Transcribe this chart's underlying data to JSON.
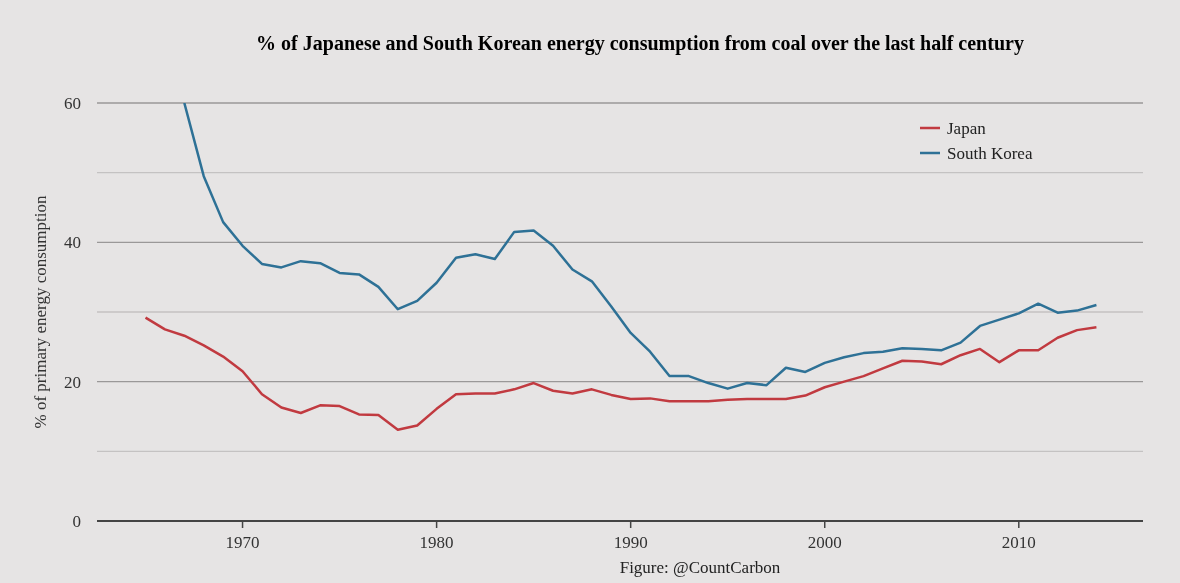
{
  "chart_data": {
    "type": "line",
    "title": "% of Japanese and South Korean energy consumption from coal over the last half century",
    "ylabel": "% of primary energy consumption",
    "annotations": [
      "Figure: @CountCarbon"
    ],
    "x": [
      1965,
      1966,
      1967,
      1968,
      1969,
      1970,
      1971,
      1972,
      1973,
      1974,
      1975,
      1976,
      1977,
      1978,
      1979,
      1980,
      1981,
      1982,
      1983,
      1984,
      1985,
      1986,
      1987,
      1988,
      1989,
      1990,
      1991,
      1992,
      1993,
      1994,
      1995,
      1996,
      1997,
      1998,
      1999,
      2000,
      2001,
      2002,
      2003,
      2004,
      2005,
      2006,
      2007,
      2008,
      2009,
      2010,
      2011,
      2012,
      2013,
      2014
    ],
    "series": [
      {
        "name": "Japan",
        "color": "#c13a40",
        "values": [
          29.2,
          27.5,
          26.6,
          25.2,
          23.6,
          21.5,
          18.2,
          16.3,
          15.5,
          16.6,
          16.5,
          15.3,
          15.2,
          13.1,
          13.7,
          16.1,
          18.2,
          18.3,
          18.3,
          18.9,
          19.8,
          18.7,
          18.3,
          18.9,
          18.1,
          17.5,
          17.6,
          17.2,
          17.2,
          17.2,
          17.4,
          17.5,
          17.5,
          17.5,
          18.0,
          19.2,
          20.0,
          20.8,
          21.9,
          23.0,
          22.9,
          22.5,
          23.8,
          24.7,
          22.8,
          24.5,
          24.5,
          26.3,
          27.4,
          27.8
        ]
      },
      {
        "name": "South Korea",
        "color": "#2e7196",
        "values": [
          null,
          null,
          60,
          49.5,
          42.9,
          39.5,
          36.9,
          36.4,
          37.3,
          37.0,
          35.6,
          35.4,
          33.6,
          30.4,
          31.6,
          34.2,
          37.8,
          38.3,
          37.6,
          41.5,
          41.7,
          39.5,
          36.1,
          34.4,
          30.8,
          27.0,
          24.3,
          20.8,
          20.8,
          19.8,
          19.0,
          19.8,
          19.5,
          22.0,
          21.4,
          22.7,
          23.5,
          24.1,
          24.3,
          24.8,
          24.7,
          24.5,
          25.6,
          28.0,
          28.9,
          29.8,
          31.2,
          29.9,
          30.2,
          31.0
        ]
      }
    ],
    "xlim": [
      1962.5,
      2016.4
    ],
    "xticks": [
      1970,
      1980,
      1990,
      2000,
      2010
    ],
    "ylim": [
      0,
      60
    ],
    "yticks": [
      0,
      {
        "value": 10,
        "label": null
      },
      20,
      {
        "value": 30,
        "label": null
      },
      40,
      {
        "value": 50,
        "label": null
      },
      60
    ],
    "grid": "y",
    "legend": "top right",
    "marker": "none",
    "line_style": "solid"
  }
}
